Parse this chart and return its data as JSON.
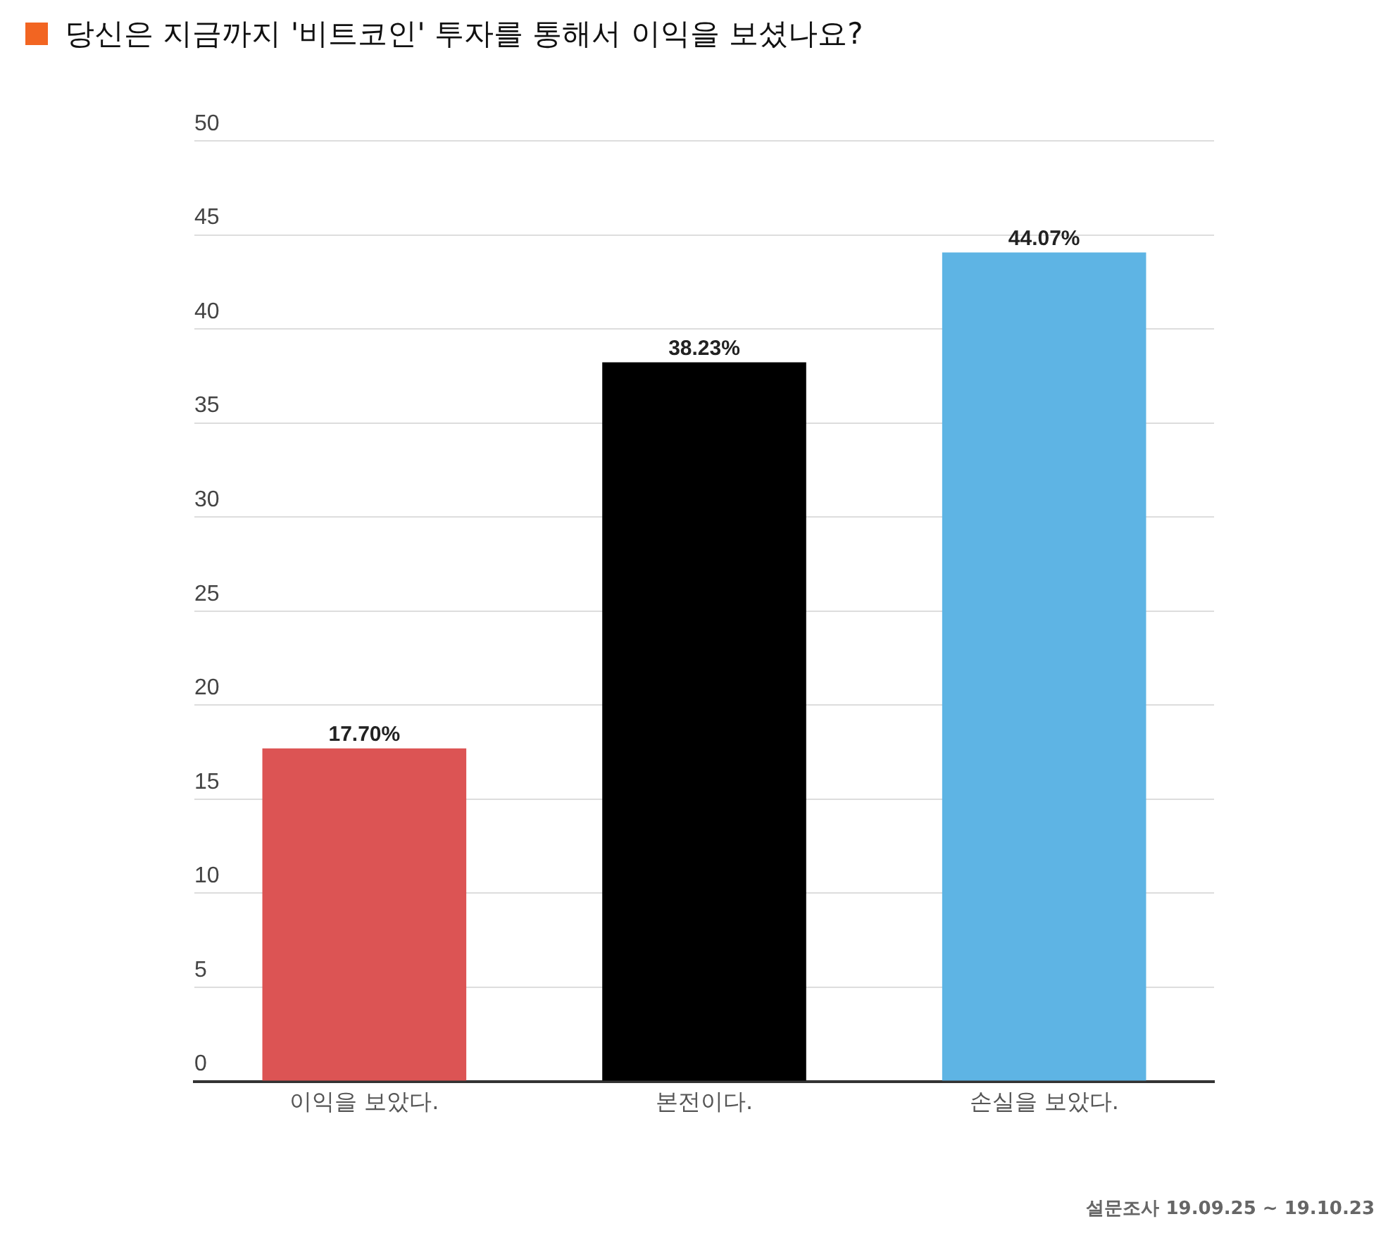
{
  "chart_data": {
    "type": "bar",
    "title": "당신은 지금까지 '비트코인' 투자를 통해서 이익을 보셨나요?",
    "categories": [
      "이익을 보았다.",
      "본전이다.",
      "손실을 보았다."
    ],
    "values": [
      17.7,
      38.23,
      44.07
    ],
    "colors": [
      "#dc5454",
      "#000000",
      "#5eb4e4"
    ],
    "value_labels": [
      "17.70%",
      "38.23%",
      "44.07%"
    ],
    "ylim": [
      0,
      50
    ],
    "yticks": [
      0,
      5,
      10,
      15,
      20,
      25,
      30,
      35,
      40,
      45,
      50
    ],
    "grid": "y",
    "legend": false,
    "annotations": [
      "설문조사 19.09.25 ~ 19.10.23"
    ]
  }
}
